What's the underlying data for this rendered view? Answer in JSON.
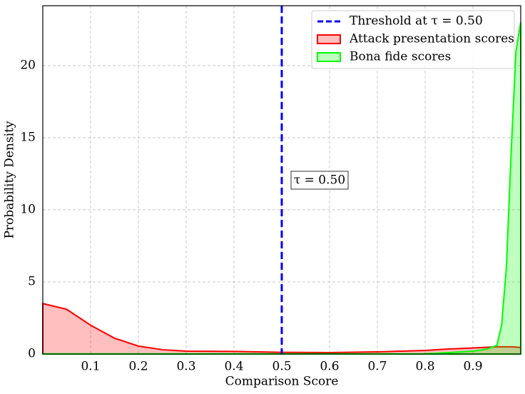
{
  "chart_data": {
    "type": "area",
    "x_label": "Comparison Score",
    "y_label": "Probability Density",
    "x": [
      0,
      0.05,
      0.1,
      0.15,
      0.2,
      0.25,
      0.3,
      0.4,
      0.5,
      0.6,
      0.7,
      0.8,
      0.85,
      0.9,
      0.93,
      0.95,
      0.96,
      0.97,
      0.98,
      0.99,
      1.0
    ],
    "series": [
      {
        "name": "Attack presentation scores",
        "color": "#ff0000",
        "values": [
          3.5,
          3.1,
          2.0,
          1.1,
          0.55,
          0.3,
          0.2,
          0.18,
          0.12,
          0.1,
          0.15,
          0.25,
          0.35,
          0.42,
          0.47,
          0.5,
          0.5,
          0.5,
          0.5,
          0.48,
          0.45
        ]
      },
      {
        "name": "Bona fide scores",
        "color": "#00ff00",
        "values": [
          0.01,
          0.01,
          0.01,
          0.01,
          0.01,
          0.01,
          0.01,
          0.01,
          0.01,
          0.01,
          0.01,
          0.02,
          0.1,
          0.2,
          0.35,
          0.6,
          2,
          6,
          14,
          21,
          23
        ]
      }
    ],
    "threshold": {
      "name": "Threshold at τ = 0.50",
      "value": 0.5,
      "color": "#0000ff",
      "annotation": "τ = 0.50"
    },
    "xlim": [
      0,
      1
    ],
    "ylim": [
      0,
      24.15
    ],
    "xticks": [
      0.1,
      0.2,
      0.3,
      0.4,
      0.5,
      0.6,
      0.7,
      0.8,
      0.9
    ],
    "yticks": [
      0,
      5,
      10,
      15,
      20
    ],
    "grid": true,
    "legend": "upper right"
  }
}
